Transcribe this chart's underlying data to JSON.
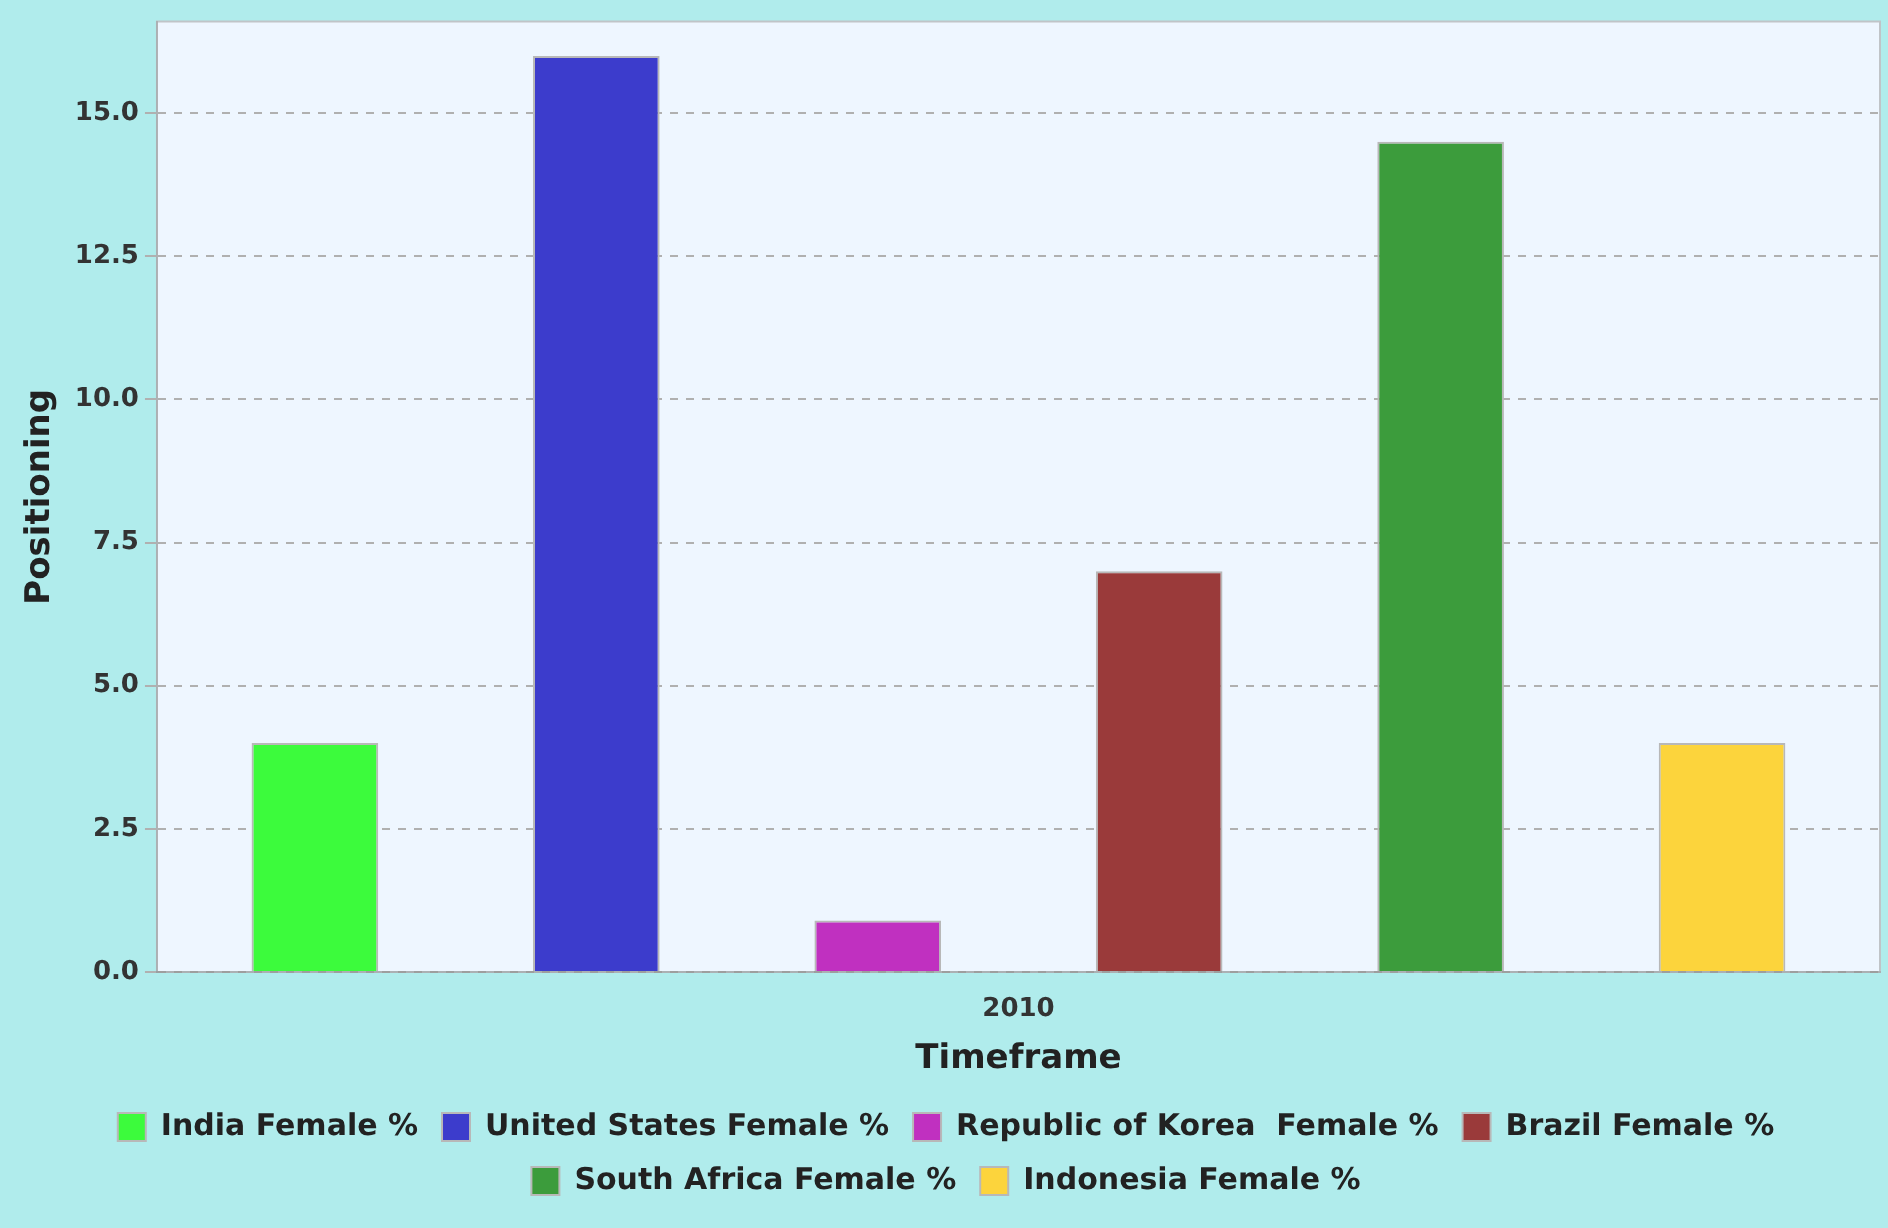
{
  "chart_data": {
    "type": "bar",
    "xlabel": "Timeframe",
    "ylabel": "Positioning",
    "categories": [
      "2010"
    ],
    "series": [
      {
        "name": "India Female %",
        "color": "#3cfb3c",
        "values": [
          4
        ]
      },
      {
        "name": "United States Female %",
        "color": "#3c3ccc",
        "values": [
          16
        ]
      },
      {
        "name": "Republic of Korea  Female %",
        "color": "#c030c0",
        "values": [
          0.9
        ]
      },
      {
        "name": "Brazil Female %",
        "color": "#9a3a3a",
        "values": [
          7
        ]
      },
      {
        "name": "South Africa Female %",
        "color": "#3c9c3c",
        "values": [
          14.5
        ]
      },
      {
        "name": "Indonesia Female %",
        "color": "#fcd43c",
        "values": [
          4
        ]
      }
    ],
    "ylim": [
      0,
      16.6
    ],
    "yticks": [
      {
        "value": 0,
        "label": "0.0"
      },
      {
        "value": 2.5,
        "label": "2.5"
      },
      {
        "value": 5,
        "label": "5.0"
      },
      {
        "value": 7.5,
        "label": "7.5"
      },
      {
        "value": 10,
        "label": "10.0"
      },
      {
        "value": 12.5,
        "label": "12.5"
      },
      {
        "value": 15,
        "label": "15.0"
      }
    ],
    "grid": "y",
    "legend": "bottom"
  }
}
